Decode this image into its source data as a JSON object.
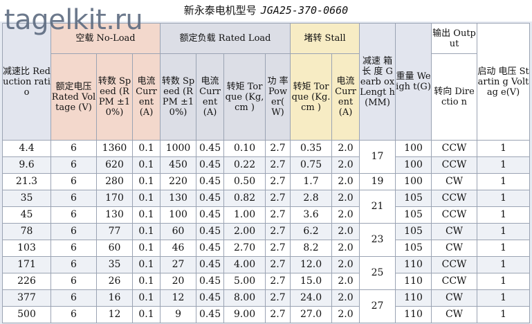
{
  "title": {
    "cn": "新永泰电机型号",
    "model": "JGA25-370-0660"
  },
  "watermark": "tagelkit.ru",
  "groups": {
    "no_load": "空载 No-Load",
    "rated_load": "额定负载 Rated Load",
    "stall": "堵转 Stall",
    "output": "输出 Output"
  },
  "headers": {
    "reduction": "减速比 Reduction ratio",
    "voltage": "额定电压 Rated Voltage (V)",
    "nl_speed": "转数 Speed (RPM ±10%)",
    "nl_current": "电流 Curr ent (A)",
    "rl_speed": "转数 Speed (RPM ±10%)",
    "rl_current": "电流 Curr ent (A)",
    "rl_torque": "转矩 Torque (Kg,cm )",
    "rl_power": "功 率 Pow er( W)",
    "st_torque": "转矩 Torque (Kg.cm )",
    "st_current": "电流 Curr ent (A)",
    "gearbox": "减速 箱长 度 Gearb ox Lengt h (MM)",
    "weight": "重量 Weigh t(G)",
    "direction": "转向 Directio n",
    "starting": "启动 电压 Startin g Voltag e(V)"
  },
  "rows": [
    [
      "4.4",
      "6",
      "1360",
      "0.1",
      "1000",
      "0.45",
      "0.10",
      "2.7",
      "0.35",
      "2.0",
      "100",
      "CCW",
      "1"
    ],
    [
      "9.6",
      "6",
      "620",
      "0.1",
      "450",
      "0.45",
      "0.22",
      "2.7",
      "0.75",
      "2.0",
      "100",
      "CCW",
      "1"
    ],
    [
      "21.3",
      "6",
      "280",
      "0.1",
      "220",
      "0.45",
      "0.50",
      "2.7",
      "1.7",
      "2.0",
      "100",
      "CW",
      "1"
    ],
    [
      "35",
      "6",
      "170",
      "0.1",
      "130",
      "0.45",
      "0.82",
      "2.7",
      "2.8",
      "2.0",
      "105",
      "CCW",
      "1"
    ],
    [
      "45",
      "6",
      "130",
      "0.1",
      "100",
      "0.45",
      "1.00",
      "2.7",
      "3.6",
      "2.0",
      "105",
      "CCW",
      "1"
    ],
    [
      "78",
      "6",
      "77",
      "0.1",
      "60",
      "0.45",
      "2.00",
      "2.7",
      "6.2",
      "2.0",
      "105",
      "CW",
      "1"
    ],
    [
      "103",
      "6",
      "60",
      "0.1",
      "46",
      "0.45",
      "2.70",
      "2.7",
      "8.2",
      "2.0",
      "105",
      "CW",
      "1"
    ],
    [
      "171",
      "6",
      "35",
      "0.1",
      "27",
      "0.45",
      "4.00",
      "2.7",
      "12.0",
      "2.0",
      "110",
      "CCW",
      "1"
    ],
    [
      "226",
      "6",
      "26",
      "0.1",
      "20",
      "0.45",
      "5.00",
      "2.7",
      "15.0",
      "2.0",
      "110",
      "CCW",
      "1"
    ],
    [
      "377",
      "6",
      "16",
      "0.1",
      "12",
      "0.45",
      "8.00",
      "2.7",
      "24.0",
      "2.0",
      "110",
      "CW",
      "1"
    ],
    [
      "500",
      "6",
      "12",
      "0.1",
      "9",
      "0.45",
      "9.00",
      "2.7",
      "27.0",
      "2.0",
      "110",
      "CW",
      "1"
    ]
  ],
  "gearbox_lengths": [
    {
      "value": "17",
      "rows": 2
    },
    {
      "value": "19",
      "rows": 1
    },
    {
      "value": "21",
      "rows": 2
    },
    {
      "value": "23",
      "rows": 2
    },
    {
      "value": "25",
      "rows": 2
    },
    {
      "value": "27",
      "rows": 2
    }
  ]
}
